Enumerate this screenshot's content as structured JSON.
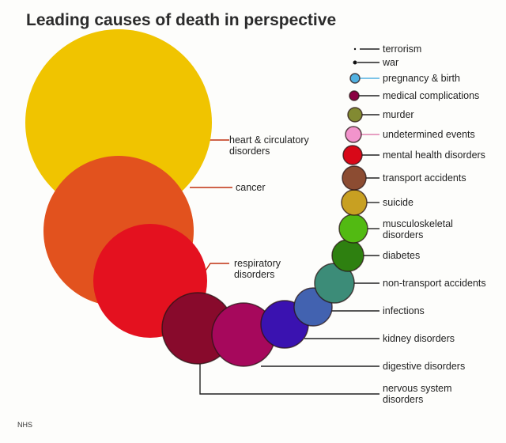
{
  "title": "Leading causes of death in perspective",
  "source": "NHS",
  "causes": [
    {
      "label": [
        "heart & circulatory",
        "disorders"
      ],
      "color": "#f0c400"
    },
    {
      "label": [
        "cancer"
      ],
      "color": "#e2521e"
    },
    {
      "label": [
        "respiratory",
        "disorders"
      ],
      "color": "#e4111f"
    },
    {
      "label": [
        "nervous system",
        "disorders"
      ],
      "color": "#880a2c"
    },
    {
      "label": [
        "digestive disorders"
      ],
      "color": "#a6085c"
    },
    {
      "label": [
        "kidney disorders"
      ],
      "color": "#3a12b0"
    },
    {
      "label": [
        "infections"
      ],
      "color": "#4262b0"
    },
    {
      "label": [
        "non-transport accidents"
      ],
      "color": "#3c8c78"
    },
    {
      "label": [
        "diabetes"
      ],
      "color": "#2e8010"
    },
    {
      "label": [
        "musculoskeletal",
        "disorders"
      ],
      "color": "#52ba12"
    },
    {
      "label": [
        "suicide"
      ],
      "color": "#c8a022"
    },
    {
      "label": [
        "transport accidents"
      ],
      "color": "#8c4c32"
    },
    {
      "label": [
        "mental health disorders"
      ],
      "color": "#d80818"
    },
    {
      "label": [
        "undetermined events"
      ],
      "color": "#f294cc"
    },
    {
      "label": [
        "murder"
      ],
      "color": "#828a32"
    },
    {
      "label": [
        "medical complications"
      ],
      "color": "#8a0042"
    },
    {
      "label": [
        "pregnancy & birth"
      ],
      "color": "#52b2e2"
    },
    {
      "label": [
        "war"
      ],
      "color": "#111111"
    },
    {
      "label": [
        "terrorism"
      ],
      "color": "#111111"
    }
  ]
}
